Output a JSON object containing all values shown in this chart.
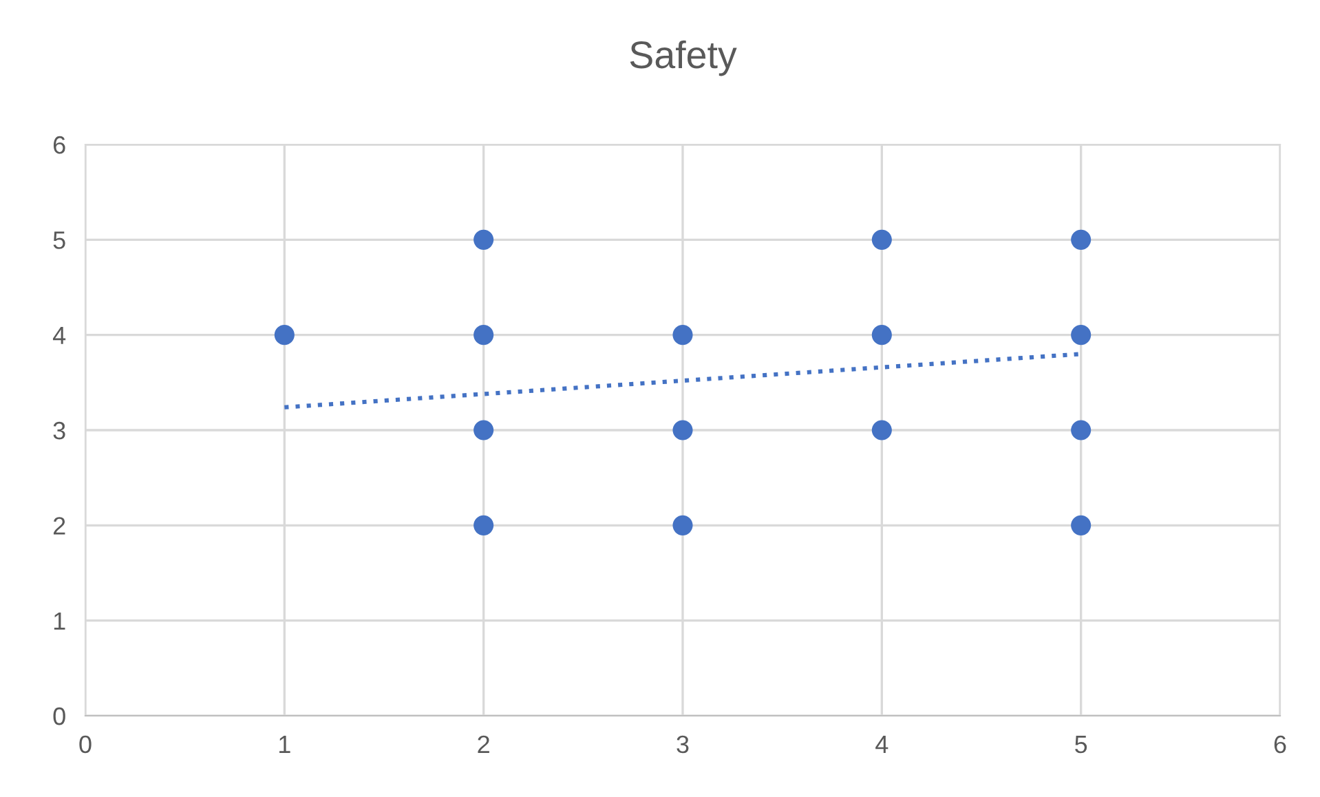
{
  "chart_data": {
    "type": "scatter",
    "title": "Safety",
    "series": [
      {
        "color": "#4472c4",
        "marker": "circle",
        "x": [
          1,
          2,
          2,
          2,
          2,
          3,
          3,
          3,
          4,
          4,
          4,
          5,
          5,
          5,
          5
        ],
        "values": [
          4,
          5,
          4,
          3,
          2,
          4,
          3,
          2,
          5,
          4,
          3,
          5,
          4,
          3,
          2
        ]
      },
      {
        "type": "line",
        "color": "#4472c4",
        "line_style": "dotted",
        "x": [
          1,
          5
        ],
        "values": [
          3.24,
          3.8
        ]
      }
    ],
    "xlim": [
      0,
      6
    ],
    "xticks": [
      0,
      1,
      2,
      3,
      4,
      5,
      6
    ],
    "ylim": [
      0,
      6
    ],
    "yticks": [
      0,
      1,
      2,
      3,
      4,
      5,
      6
    ],
    "grid": true,
    "legend": false
  }
}
